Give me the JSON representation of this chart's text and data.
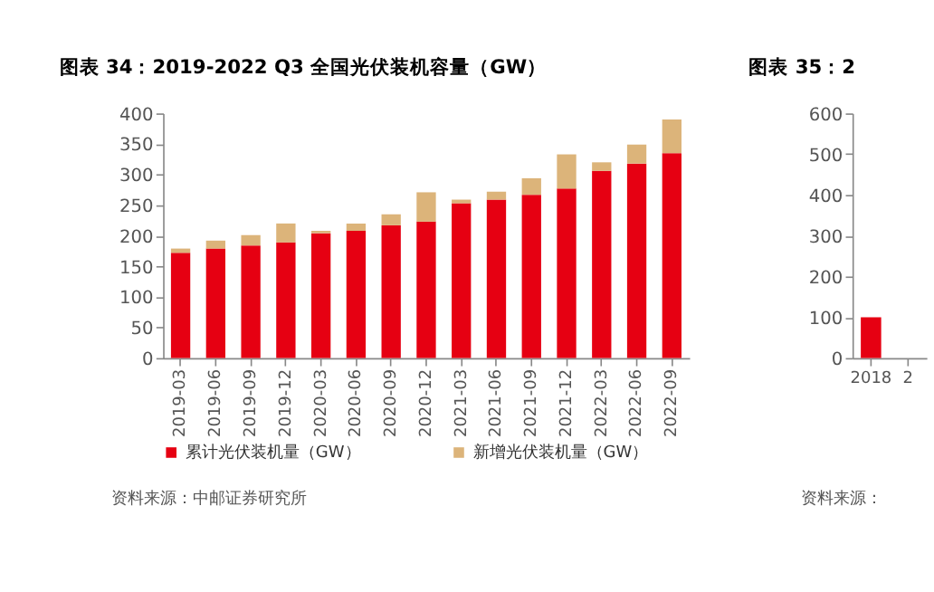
{
  "chart_data": [
    {
      "type": "bar",
      "title": "图表 34：2019-2022 Q3 全国光伏装机容量（GW）",
      "stacked": true,
      "categories": [
        "2019-03",
        "2019-06",
        "2019-09",
        "2019-12",
        "2020-03",
        "2020-06",
        "2020-09",
        "2020-12",
        "2021-03",
        "2021-06",
        "2021-09",
        "2021-12",
        "2022-03",
        "2022-06",
        "2022-09"
      ],
      "series": [
        {
          "name": "累计光伏装机量（GW）",
          "color": "#e60012",
          "values": [
            172,
            179,
            184,
            189,
            204,
            208,
            217,
            223,
            253,
            259,
            267,
            277,
            306,
            318,
            335
          ]
        },
        {
          "name": "新增光伏装机量（GW）",
          "color": "#dcb47a",
          "values": [
            7,
            13,
            17,
            31,
            4,
            12,
            18,
            48,
            6,
            13,
            27,
            56,
            14,
            31,
            55
          ]
        }
      ],
      "ylim": [
        0,
        400
      ],
      "yticks": [
        0,
        50,
        100,
        150,
        200,
        250,
        300,
        350,
        400
      ],
      "grid": false,
      "legend": "bottom",
      "annotations": [
        "资料来源：中邮证券研究所"
      ]
    },
    {
      "type": "bar",
      "title": "图表 35：2",
      "categories": [
        "2018",
        "2"
      ],
      "series": [
        {
          "color": "#e60012",
          "values": [
            100,
            null
          ]
        }
      ],
      "ylim": [
        0,
        600
      ],
      "yticks": [
        0,
        100,
        200,
        300,
        400,
        500,
        600
      ],
      "grid": false,
      "legend": false,
      "annotations": [
        "资料来源："
      ]
    }
  ]
}
